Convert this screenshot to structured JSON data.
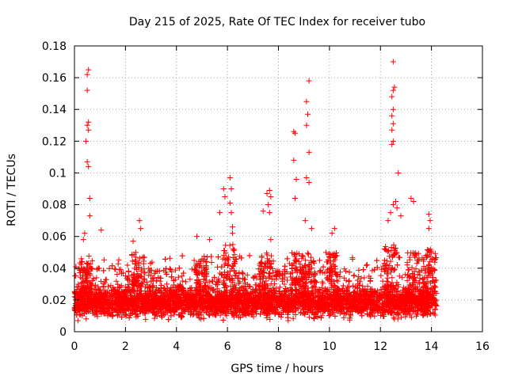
{
  "chart_data": {
    "type": "scatter",
    "title": "Day 215 of 2025, Rate Of TEC Index for receiver tubo",
    "xlabel": "GPS time / hours",
    "ylabel": "ROTI / TECUs",
    "xlim": [
      0,
      16
    ],
    "ylim": [
      0,
      0.18
    ],
    "xticks": [
      "0",
      "2",
      "4",
      "6",
      "8",
      "10",
      "12",
      "14",
      "16"
    ],
    "yticks": [
      "0",
      "0.02",
      "0.04",
      "0.06",
      "0.08",
      "0.1",
      "0.12",
      "0.14",
      "0.16",
      "0.18"
    ],
    "grid": true,
    "marker": "+",
    "color": "#ff0000",
    "x_range_of_data": [
      0,
      14.2
    ],
    "series": [
      {
        "name": "ROTI",
        "description_of_bulk": "dense band of points between about 0.005 and 0.04 TECU across 0-14.2 h",
        "peaks": [
          {
            "x": 0.55,
            "y": 0.165
          },
          {
            "x": 0.5,
            "y": 0.162
          },
          {
            "x": 0.5,
            "y": 0.152
          },
          {
            "x": 0.55,
            "y": 0.132
          },
          {
            "x": 0.5,
            "y": 0.13
          },
          {
            "x": 0.55,
            "y": 0.127
          },
          {
            "x": 0.45,
            "y": 0.12
          },
          {
            "x": 0.5,
            "y": 0.107
          },
          {
            "x": 0.55,
            "y": 0.104
          },
          {
            "x": 0.6,
            "y": 0.084
          },
          {
            "x": 0.6,
            "y": 0.073
          },
          {
            "x": 1.05,
            "y": 0.064
          },
          {
            "x": 0.4,
            "y": 0.062
          },
          {
            "x": 0.35,
            "y": 0.058
          },
          {
            "x": 2.55,
            "y": 0.07
          },
          {
            "x": 2.6,
            "y": 0.065
          },
          {
            "x": 2.3,
            "y": 0.057
          },
          {
            "x": 4.8,
            "y": 0.06
          },
          {
            "x": 5.3,
            "y": 0.058
          },
          {
            "x": 5.85,
            "y": 0.09
          },
          {
            "x": 5.9,
            "y": 0.085
          },
          {
            "x": 6.1,
            "y": 0.097
          },
          {
            "x": 6.15,
            "y": 0.09
          },
          {
            "x": 6.1,
            "y": 0.081
          },
          {
            "x": 6.15,
            "y": 0.075
          },
          {
            "x": 6.2,
            "y": 0.066
          },
          {
            "x": 6.2,
            "y": 0.062
          },
          {
            "x": 5.7,
            "y": 0.075
          },
          {
            "x": 7.65,
            "y": 0.089
          },
          {
            "x": 7.7,
            "y": 0.085
          },
          {
            "x": 7.55,
            "y": 0.087
          },
          {
            "x": 7.6,
            "y": 0.08
          },
          {
            "x": 7.65,
            "y": 0.075
          },
          {
            "x": 7.4,
            "y": 0.076
          },
          {
            "x": 7.7,
            "y": 0.058
          },
          {
            "x": 8.6,
            "y": 0.126
          },
          {
            "x": 8.65,
            "y": 0.125
          },
          {
            "x": 8.6,
            "y": 0.108
          },
          {
            "x": 8.7,
            "y": 0.096
          },
          {
            "x": 8.65,
            "y": 0.084
          },
          {
            "x": 9.2,
            "y": 0.158
          },
          {
            "x": 9.1,
            "y": 0.145
          },
          {
            "x": 9.15,
            "y": 0.137
          },
          {
            "x": 9.1,
            "y": 0.13
          },
          {
            "x": 9.2,
            "y": 0.113
          },
          {
            "x": 9.1,
            "y": 0.097
          },
          {
            "x": 9.2,
            "y": 0.094
          },
          {
            "x": 9.05,
            "y": 0.07
          },
          {
            "x": 9.3,
            "y": 0.065
          },
          {
            "x": 10.2,
            "y": 0.065
          },
          {
            "x": 10.1,
            "y": 0.062
          },
          {
            "x": 12.5,
            "y": 0.17
          },
          {
            "x": 12.55,
            "y": 0.154
          },
          {
            "x": 12.5,
            "y": 0.152
          },
          {
            "x": 12.45,
            "y": 0.148
          },
          {
            "x": 12.5,
            "y": 0.14
          },
          {
            "x": 12.45,
            "y": 0.136
          },
          {
            "x": 12.5,
            "y": 0.131
          },
          {
            "x": 12.45,
            "y": 0.127
          },
          {
            "x": 12.5,
            "y": 0.12
          },
          {
            "x": 12.45,
            "y": 0.118
          },
          {
            "x": 12.7,
            "y": 0.1
          },
          {
            "x": 12.6,
            "y": 0.082
          },
          {
            "x": 12.5,
            "y": 0.08
          },
          {
            "x": 12.4,
            "y": 0.075
          },
          {
            "x": 12.3,
            "y": 0.07
          },
          {
            "x": 12.65,
            "y": 0.078
          },
          {
            "x": 12.8,
            "y": 0.073
          },
          {
            "x": 13.2,
            "y": 0.084
          },
          {
            "x": 13.3,
            "y": 0.082
          },
          {
            "x": 13.9,
            "y": 0.074
          },
          {
            "x": 13.95,
            "y": 0.07
          },
          {
            "x": 13.9,
            "y": 0.065
          }
        ]
      }
    ]
  }
}
